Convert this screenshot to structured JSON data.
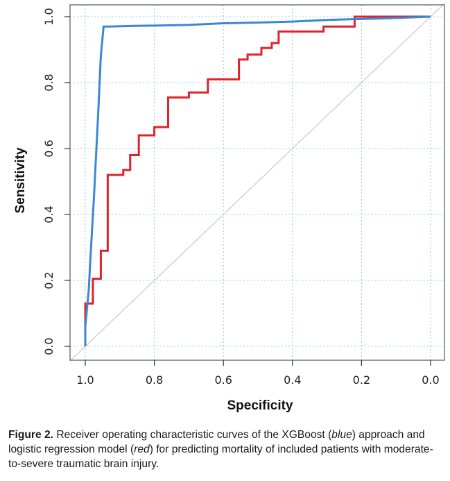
{
  "chart_data": {
    "type": "line",
    "title": "",
    "xlabel": "Specificity",
    "ylabel": "Sensitivity",
    "xlim": [
      1.0,
      0.0
    ],
    "ylim": [
      0.0,
      1.0
    ],
    "x_ticks": [
      "1.0",
      "0.8",
      "0.6",
      "0.4",
      "0.2",
      "0.0"
    ],
    "y_ticks": [
      "0.0",
      "0.2",
      "0.4",
      "0.6",
      "0.8",
      "1.0"
    ],
    "grid": true,
    "reference_line": {
      "from": [
        1.0,
        0.0
      ],
      "to": [
        0.0,
        1.0
      ],
      "color": "#cfcfcf"
    },
    "series": [
      {
        "name": "XGBoost",
        "color": "#3b86d6",
        "points": [
          [
            1.0,
            0.0
          ],
          [
            1.0,
            0.06
          ],
          [
            0.99,
            0.17
          ],
          [
            0.985,
            0.27
          ],
          [
            0.975,
            0.45
          ],
          [
            0.962,
            0.72
          ],
          [
            0.955,
            0.88
          ],
          [
            0.947,
            0.97
          ],
          [
            0.93,
            0.97
          ],
          [
            0.86,
            0.972
          ],
          [
            0.8,
            0.973
          ],
          [
            0.7,
            0.975
          ],
          [
            0.6,
            0.98
          ],
          [
            0.5,
            0.982
          ],
          [
            0.4,
            0.985
          ],
          [
            0.3,
            0.99
          ],
          [
            0.2,
            0.993
          ],
          [
            0.1,
            0.996
          ],
          [
            0.0,
            1.0
          ]
        ]
      },
      {
        "name": "Logistic regression",
        "color": "#e0232a",
        "points": [
          [
            1.0,
            0.0
          ],
          [
            1.0,
            0.13
          ],
          [
            0.978,
            0.13
          ],
          [
            0.978,
            0.205
          ],
          [
            0.955,
            0.205
          ],
          [
            0.955,
            0.29
          ],
          [
            0.935,
            0.29
          ],
          [
            0.935,
            0.52
          ],
          [
            0.89,
            0.52
          ],
          [
            0.89,
            0.535
          ],
          [
            0.87,
            0.535
          ],
          [
            0.87,
            0.58
          ],
          [
            0.845,
            0.58
          ],
          [
            0.845,
            0.64
          ],
          [
            0.8,
            0.64
          ],
          [
            0.8,
            0.665
          ],
          [
            0.76,
            0.665
          ],
          [
            0.76,
            0.755
          ],
          [
            0.7,
            0.755
          ],
          [
            0.7,
            0.77
          ],
          [
            0.645,
            0.77
          ],
          [
            0.645,
            0.81
          ],
          [
            0.555,
            0.81
          ],
          [
            0.555,
            0.87
          ],
          [
            0.53,
            0.87
          ],
          [
            0.53,
            0.885
          ],
          [
            0.49,
            0.885
          ],
          [
            0.49,
            0.905
          ],
          [
            0.46,
            0.905
          ],
          [
            0.46,
            0.92
          ],
          [
            0.44,
            0.92
          ],
          [
            0.44,
            0.955
          ],
          [
            0.31,
            0.955
          ],
          [
            0.31,
            0.97
          ],
          [
            0.22,
            0.97
          ],
          [
            0.22,
            1.0
          ],
          [
            0.0,
            1.0
          ]
        ]
      }
    ]
  },
  "caption": {
    "label": "Figure 2.",
    "text_part1": " Receiver operating characteristic curves of the XGBoost (",
    "italic1": "blue",
    "text_part2": ") approach and logistic regression model (",
    "italic2": "red",
    "text_part3": ") for predicting mortality of included patients with moderate-to-severe traumatic brain injury."
  }
}
